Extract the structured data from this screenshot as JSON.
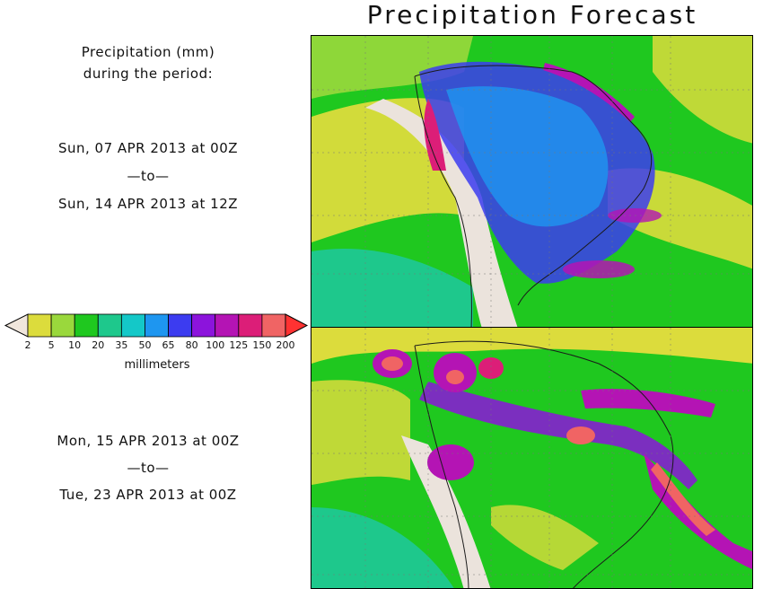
{
  "title": "Precipitation Forecast",
  "caption": {
    "line1": "Precipitation (mm)",
    "line2": "during the period:"
  },
  "period1": {
    "start": "Sun, 07 APR 2013 at 00Z",
    "sep": "—to—",
    "end": "Sun, 14 APR 2013 at 12Z"
  },
  "period2": {
    "start": "Mon, 15 APR 2013 at 00Z",
    "sep": "—to—",
    "end": "Tue, 23 APR 2013 at 00Z"
  },
  "legend": {
    "units": "millimeters",
    "ticks": [
      "2",
      "5",
      "10",
      "20",
      "35",
      "50",
      "65",
      "80",
      "100",
      "125",
      "150",
      "200"
    ],
    "colors": [
      "#dcdc3c",
      "#9ad83c",
      "#1fc81f",
      "#1ec88c",
      "#14c8c8",
      "#1e96f0",
      "#3c3cf0",
      "#8c14dc",
      "#b414b4",
      "#dc1e78",
      "#f06464"
    ],
    "under_color": "#f0e6dc",
    "over_color": "#ff3232"
  },
  "palette": {
    "land": "#ebe3dc",
    "border": "#1a1a1a",
    "grid": "#777777"
  }
}
